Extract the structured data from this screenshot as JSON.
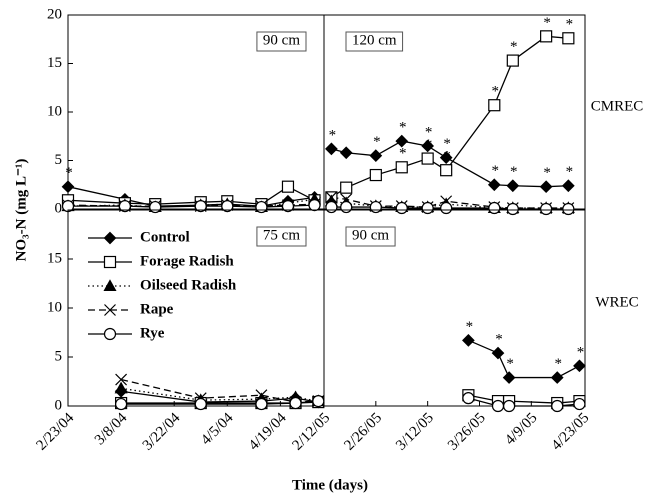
{
  "axis_labels": {
    "y": "NO₃-N (mg L⁻¹)",
    "x": "Time (days)"
  },
  "series_styles": [
    {
      "name": "Control",
      "marker": "diamond",
      "dash": "solid",
      "color": "#000000"
    },
    {
      "name": "Forage Radish",
      "marker": "square",
      "dash": "solid",
      "color": "#000000"
    },
    {
      "name": "Oilseed Radish",
      "marker": "triangle",
      "dash": "dotted",
      "color": "#000000"
    },
    {
      "name": "Rape",
      "marker": "x",
      "dash": "dashed",
      "color": "#000000"
    },
    {
      "name": "Rye",
      "marker": "circle",
      "dash": "solid",
      "color": "#000000"
    }
  ],
  "chart_data": [
    {
      "type": "line",
      "panel": "90 cm",
      "xlim": [
        0,
        67.5
      ],
      "ylim": [
        0,
        20
      ],
      "yticks": [
        0,
        5,
        10,
        15,
        20
      ],
      "x": [
        0,
        15,
        23,
        35,
        42,
        51,
        58,
        65
      ],
      "series": [
        {
          "values": [
            2.3,
            1.0,
            0.3,
            0.4,
            0.5,
            0.3,
            0.8,
            1.2
          ],
          "annotations": [
            "*",
            null,
            null,
            null,
            null,
            null,
            null,
            null
          ]
        },
        {
          "values": [
            0.9,
            0.6,
            0.5,
            0.7,
            0.8,
            0.5,
            2.3,
            0.9
          ],
          "annotations": [
            null,
            null,
            null,
            null,
            null,
            null,
            null,
            null
          ]
        },
        {
          "values": [
            0.3,
            0.4,
            0.2,
            0.4,
            0.5,
            0.2,
            0.6,
            1.0
          ],
          "annotations": [
            null,
            null,
            null,
            null,
            null,
            null,
            null,
            null
          ]
        },
        {
          "values": [
            0.4,
            0.3,
            0.3,
            0.3,
            0.4,
            0.3,
            0.4,
            0.5
          ],
          "annotations": [
            null,
            null,
            null,
            null,
            null,
            null,
            null,
            null
          ]
        },
        {
          "values": [
            0.3,
            0.3,
            0.2,
            0.3,
            0.3,
            0.2,
            0.3,
            0.4
          ],
          "annotations": [
            null,
            null,
            null,
            null,
            null,
            null,
            null,
            null
          ]
        }
      ]
    },
    {
      "type": "line",
      "panel": "120 cm",
      "site": "CMREC",
      "xlim": [
        0,
        70.5
      ],
      "ylim": [
        0,
        20
      ],
      "x": [
        2,
        6,
        14,
        21,
        28,
        33,
        46,
        51,
        60,
        66
      ],
      "series": [
        {
          "values": [
            6.2,
            5.8,
            5.5,
            7.0,
            6.5,
            5.3,
            2.5,
            2.4,
            2.3,
            2.4
          ],
          "annotations": [
            "*",
            null,
            "*",
            "*",
            "*",
            "*",
            "*",
            "*",
            "*",
            "*"
          ]
        },
        {
          "values": [
            1.2,
            2.2,
            3.5,
            4.3,
            5.2,
            4.0,
            10.7,
            15.3,
            17.8,
            17.6
          ],
          "annotations": [
            null,
            null,
            null,
            "*",
            "*",
            "*",
            "*",
            "*",
            "*",
            "*"
          ]
        },
        {
          "values": [
            0.8,
            0.6,
            0.3,
            0.2,
            0.2,
            0.5,
            0.1,
            0.1,
            0.1,
            0.1
          ],
          "annotations": [
            null,
            null,
            null,
            null,
            null,
            null,
            null,
            null,
            null,
            null
          ]
        },
        {
          "values": [
            1.2,
            1.0,
            0.3,
            0.3,
            0.2,
            0.8,
            0.2,
            0.1,
            0.1,
            0.1
          ],
          "annotations": [
            null,
            null,
            null,
            null,
            null,
            null,
            null,
            null,
            null,
            null
          ]
        },
        {
          "values": [
            0.2,
            0.2,
            0.2,
            0.1,
            0.1,
            0.1,
            0.1,
            0.0,
            0.0,
            0.0
          ],
          "annotations": [
            null,
            null,
            null,
            null,
            null,
            null,
            null,
            null,
            null,
            null
          ]
        }
      ]
    },
    {
      "type": "line",
      "panel": "75 cm",
      "legend": "upper left",
      "xlim": [
        0,
        67.5
      ],
      "ylim": [
        0,
        20
      ],
      "yticks": [
        0,
        5,
        10,
        15
      ],
      "xticks": [
        {
          "value": 0,
          "label": "2/23/04"
        },
        {
          "value": 14,
          "label": "3/8/04"
        },
        {
          "value": 28,
          "label": "3/22/04"
        },
        {
          "value": 42,
          "label": "4/5/04"
        },
        {
          "value": 56,
          "label": "4/19/04"
        }
      ],
      "x": [
        14,
        35,
        51,
        60,
        66
      ],
      "series": [
        {
          "values": [
            1.5,
            0.4,
            0.5,
            0.8,
            0.4
          ],
          "annotations": [
            null,
            null,
            null,
            null,
            null
          ]
        },
        {
          "values": [
            0.3,
            0.3,
            0.3,
            0.3,
            0.4
          ],
          "annotations": [
            null,
            null,
            null,
            null,
            null
          ]
        },
        {
          "values": [
            1.8,
            0.6,
            0.7,
            0.9,
            0.5
          ],
          "annotations": [
            null,
            null,
            null,
            null,
            null
          ]
        },
        {
          "values": [
            2.7,
            0.8,
            1.1,
            0.4,
            0.5
          ],
          "annotations": [
            null,
            null,
            null,
            null,
            null
          ]
        },
        {
          "values": [
            0.2,
            0.2,
            0.2,
            0.3,
            0.5
          ],
          "annotations": [
            null,
            null,
            null,
            null,
            null
          ]
        }
      ]
    },
    {
      "type": "line",
      "panel": "90 cm",
      "site": "WREC",
      "xlim": [
        0,
        70.5
      ],
      "ylim": [
        0,
        20
      ],
      "xticks": [
        {
          "value": 0,
          "label": "2/12/05"
        },
        {
          "value": 14,
          "label": "2/26/05"
        },
        {
          "value": 28,
          "label": "3/12/05"
        },
        {
          "value": 42,
          "label": "3/26/05"
        },
        {
          "value": 56,
          "label": "4/9/05"
        },
        {
          "value": 70,
          "label": "4/23/05"
        }
      ],
      "x": [
        39,
        47,
        50,
        63,
        69
      ],
      "series": [
        {
          "values": [
            6.7,
            5.4,
            2.9,
            2.9,
            4.1
          ],
          "annotations": [
            "*",
            "*",
            "*",
            "*",
            "*"
          ]
        },
        {
          "values": [
            1.1,
            0.5,
            0.5,
            0.3,
            0.5
          ],
          "annotations": [
            null,
            null,
            null,
            null,
            null
          ]
        },
        {
          "values": [
            null,
            null,
            null,
            null,
            null
          ],
          "annotations": [
            null,
            null,
            null,
            null,
            null
          ]
        },
        {
          "values": [
            null,
            null,
            null,
            null,
            null
          ],
          "annotations": [
            null,
            null,
            null,
            null,
            null
          ]
        },
        {
          "values": [
            0.8,
            0.0,
            0.0,
            0.0,
            0.2
          ],
          "annotations": [
            null,
            null,
            null,
            null,
            null
          ]
        }
      ]
    }
  ]
}
